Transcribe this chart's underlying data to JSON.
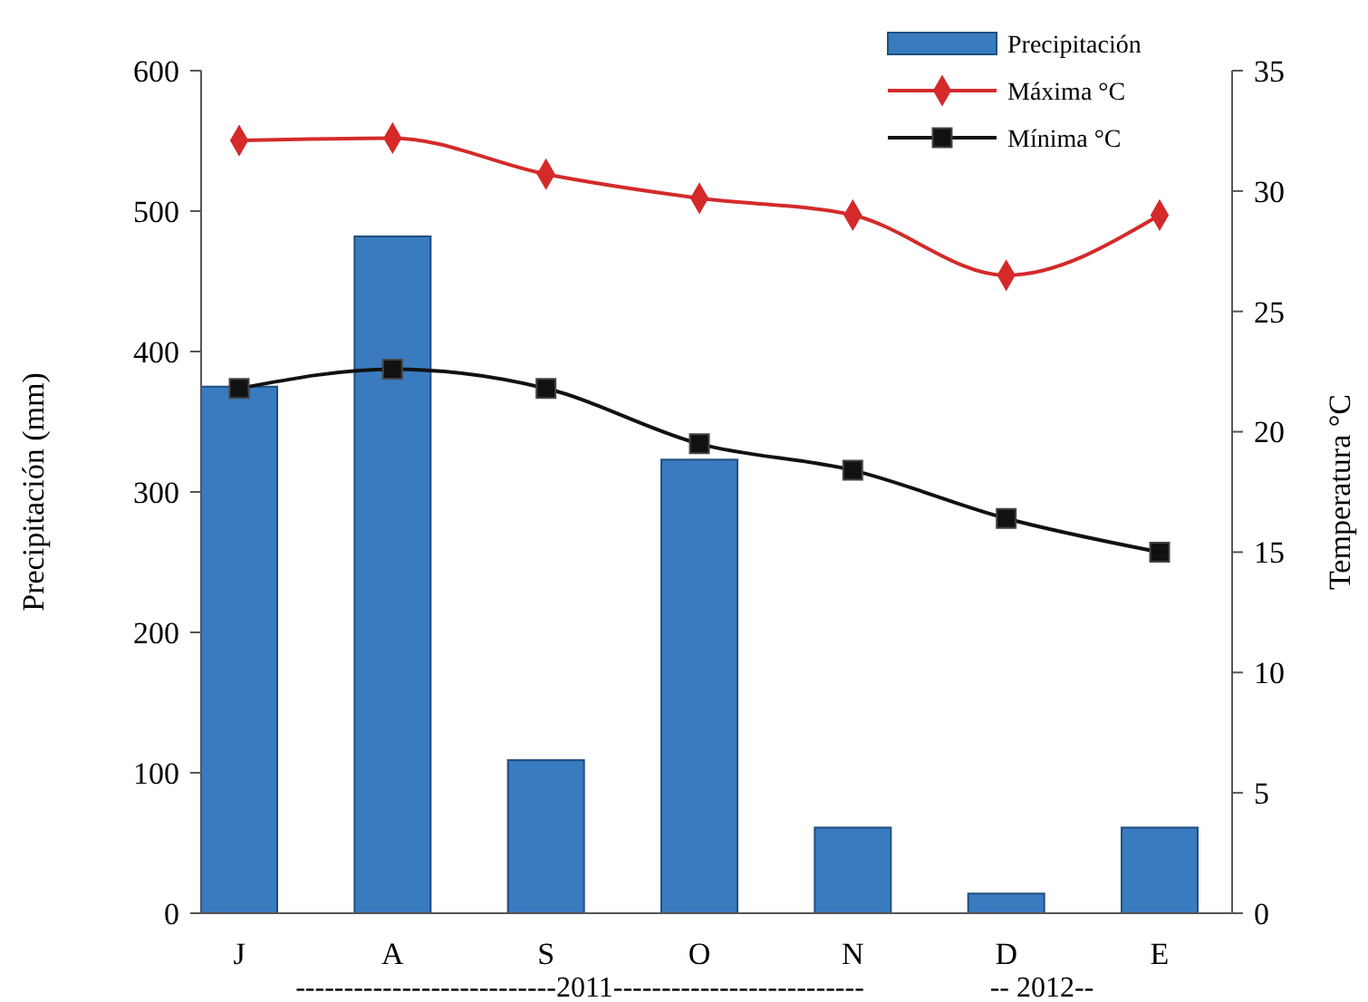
{
  "chart_data": {
    "type": "bar",
    "categories": [
      "J",
      "A",
      "S",
      "O",
      "N",
      "D",
      "E"
    ],
    "ylabel": "Precipitación (mm)",
    "y2label": "Temperatura °C",
    "ylim": [
      0,
      600
    ],
    "yticks": [
      0,
      100,
      200,
      300,
      400,
      500,
      600
    ],
    "y2lim": [
      0,
      35
    ],
    "y2ticks": [
      0,
      5,
      10,
      15,
      20,
      25,
      30,
      35
    ],
    "legend": "top right",
    "grid": false,
    "annotations": [
      "---------------------------2011--------------------------",
      "-- 2012--"
    ],
    "series": [
      {
        "name": "Precipitación",
        "color": "#3a7bbf",
        "values": [
          375,
          482,
          109,
          323,
          61,
          14,
          61
        ]
      },
      {
        "name": "Máxima °C",
        "type": "line",
        "axis": "y2",
        "color": "#d42a2a",
        "marker": "diamond",
        "values": [
          32.1,
          32.2,
          30.7,
          29.7,
          29.0,
          26.5,
          29.0
        ]
      },
      {
        "name": "Mínima °C",
        "type": "line",
        "axis": "y2",
        "color": "#111111",
        "marker": "square",
        "values": [
          21.8,
          22.6,
          21.8,
          19.5,
          18.4,
          16.4,
          15.0
        ]
      }
    ]
  }
}
